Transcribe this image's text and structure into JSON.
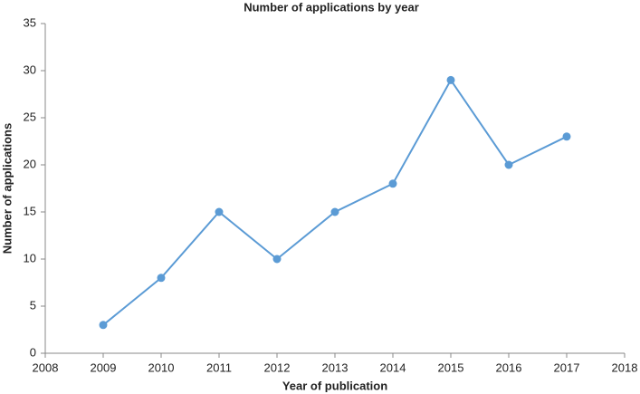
{
  "chart_data": {
    "type": "line",
    "title": "Number of applications by year",
    "x_label": "Year of publication",
    "y_label": "Number of applications",
    "series": [
      {
        "color": "#5b9bd5",
        "x": [
          2009,
          2010,
          2011,
          2012,
          2013,
          2014,
          2015,
          2016,
          2017
        ],
        "values": [
          3,
          8,
          15,
          10,
          15,
          18,
          29,
          20,
          23
        ]
      }
    ],
    "xlim": [
      2008,
      2018
    ],
    "xticks": [
      2008,
      2009,
      2010,
      2011,
      2012,
      2013,
      2014,
      2015,
      2016,
      2017,
      2018
    ],
    "ylim": [
      0,
      35
    ],
    "yticks": [
      0,
      5,
      10,
      15,
      20,
      25,
      30,
      35
    ],
    "grid": false,
    "markers": true
  }
}
